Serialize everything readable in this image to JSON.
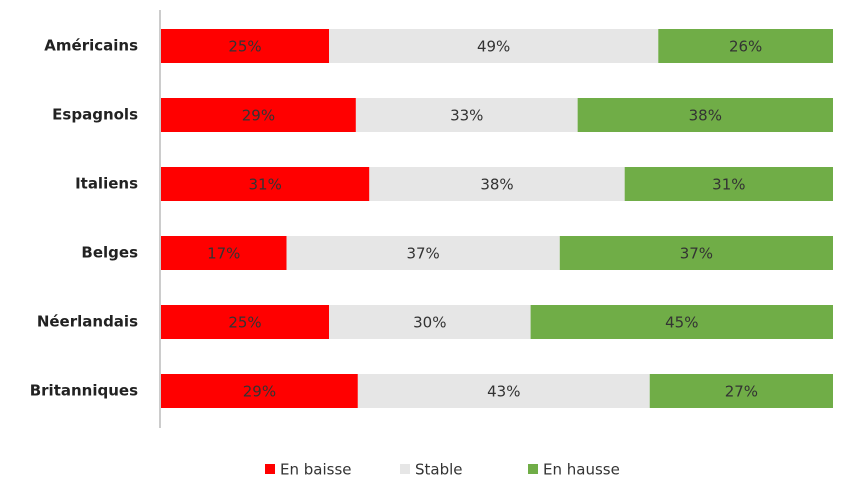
{
  "chart_data": {
    "type": "stacked-barh",
    "categories": [
      "Américains",
      "Espagnols",
      "Italiens",
      "Belges",
      "Néerlandais",
      "Britanniques"
    ],
    "series": [
      {
        "name": "En baisse",
        "color": "#ff0000",
        "values": [
          25,
          29,
          31,
          17,
          25,
          29
        ],
        "value_labels": [
          "25%",
          "29%",
          "31%",
          "17%",
          "25%",
          "29%"
        ]
      },
      {
        "name": "Stable",
        "color": "#e6e6e6",
        "values": [
          49,
          33,
          38,
          37,
          30,
          43
        ],
        "value_labels": [
          "49%",
          "33%",
          "38%",
          "37%",
          "30%",
          "43%"
        ]
      },
      {
        "name": "En hausse",
        "color": "#70ad47",
        "values": [
          26,
          38,
          31,
          37,
          45,
          27
        ],
        "value_labels": [
          "26%",
          "38%",
          "31%",
          "37%",
          "45%",
          "27%"
        ]
      }
    ],
    "legend": "bottom"
  }
}
